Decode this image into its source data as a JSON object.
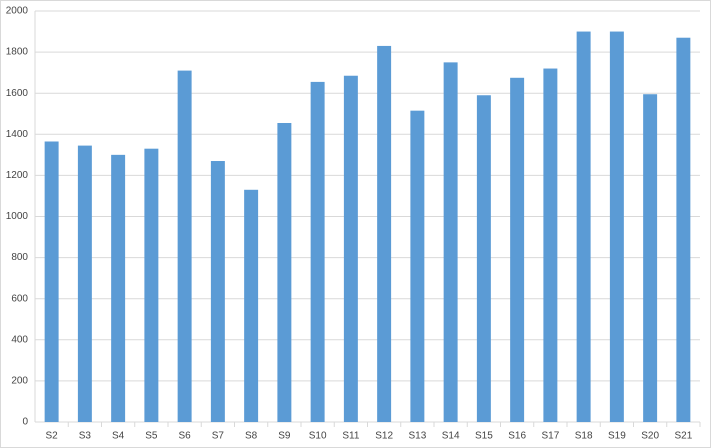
{
  "chart_data": {
    "type": "bar",
    "categories": [
      "S2",
      "S3",
      "S4",
      "S5",
      "S6",
      "S7",
      "S8",
      "S9",
      "S10",
      "S11",
      "S12",
      "S13",
      "S14",
      "S15",
      "S16",
      "S17",
      "S18",
      "S19",
      "S20",
      "S21"
    ],
    "values": [
      1365,
      1345,
      1300,
      1330,
      1710,
      1270,
      1130,
      1455,
      1655,
      1685,
      1830,
      1515,
      1750,
      1590,
      1675,
      1720,
      1900,
      1900,
      1595,
      1870
    ],
    "color": "#5b9bd5",
    "ylim": [
      0,
      2000
    ],
    "yticks": [
      0,
      200,
      400,
      600,
      800,
      1000,
      1200,
      1400,
      1600,
      1800,
      2000
    ],
    "grid": true
  }
}
